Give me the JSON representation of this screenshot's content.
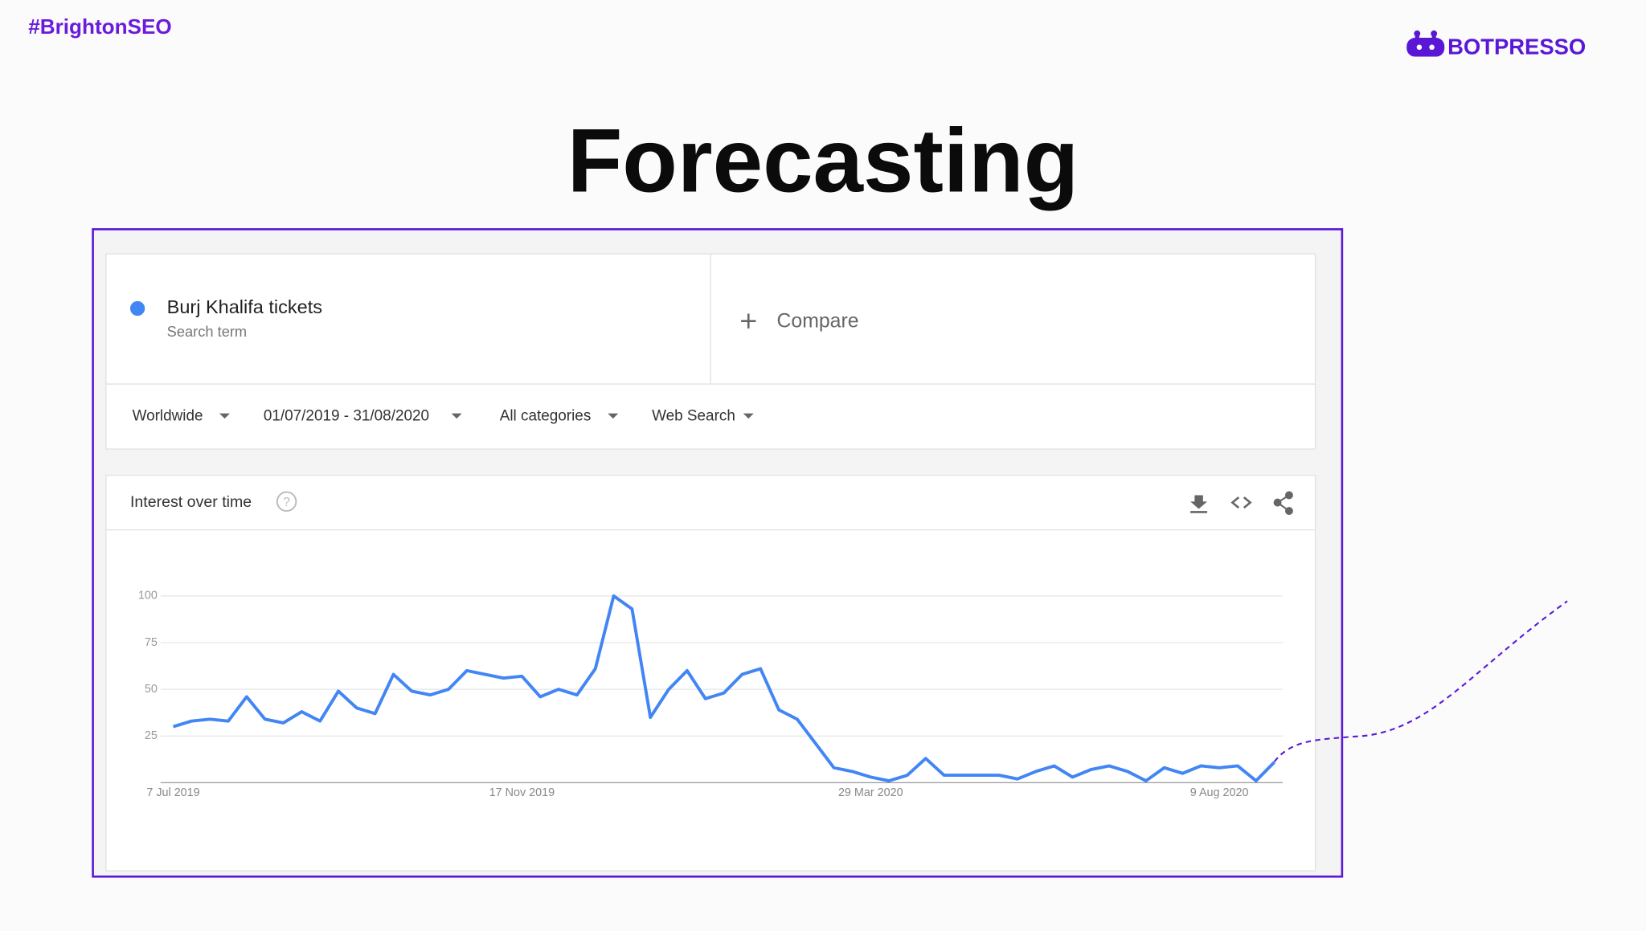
{
  "header": {
    "hashtag": "#BrightonSEO",
    "logo": "BOTPRESSO"
  },
  "title": "Forecasting",
  "search": {
    "term": "Burj Khalifa tickets",
    "term_type": "Search term",
    "compare": "Compare"
  },
  "filters": [
    "Worldwide",
    "01/07/2019 - 31/08/2020",
    "All categories",
    "Web Search"
  ],
  "chart_data": {
    "type": "line",
    "title": "Interest over time",
    "categories": [
      "7 Jul 2019",
      null,
      null,
      null,
      null,
      null,
      null,
      null,
      null,
      null,
      null,
      null,
      null,
      null,
      null,
      null,
      null,
      null,
      null,
      "17 Nov 2019",
      null,
      null,
      null,
      null,
      null,
      null,
      null,
      null,
      null,
      null,
      null,
      null,
      null,
      null,
      null,
      null,
      null,
      null,
      "29 Mar 2020",
      null,
      null,
      null,
      null,
      null,
      null,
      null,
      null,
      null,
      null,
      null,
      null,
      null,
      null,
      null,
      null,
      null,
      null,
      "9 Aug 2020",
      null,
      null,
      null
    ],
    "values": [
      30,
      33,
      34,
      33,
      46,
      34,
      32,
      38,
      33,
      49,
      40,
      37,
      58,
      49,
      47,
      50,
      60,
      58,
      56,
      57,
      46,
      50,
      47,
      61,
      100,
      93,
      35,
      50,
      60,
      45,
      48,
      58,
      61,
      39,
      34,
      21,
      8,
      6,
      3,
      1,
      4,
      13,
      4,
      4,
      4,
      4,
      2,
      6,
      9,
      3,
      7,
      9,
      6,
      1,
      8,
      5,
      9,
      8,
      9,
      1,
      11
    ],
    "color": "#4285f4",
    "ylim": [
      0,
      100
    ],
    "yticks": [
      25,
      50,
      75,
      100
    ],
    "grid": true
  }
}
